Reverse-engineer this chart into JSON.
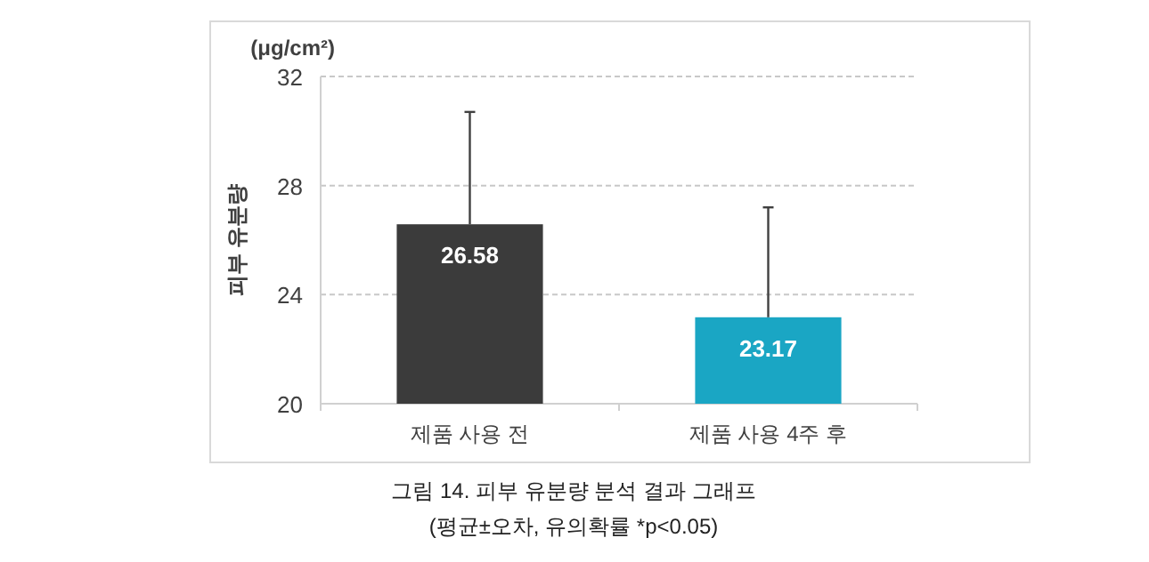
{
  "chart_data": {
    "type": "bar",
    "title": "그림 14. 피부 유분량 분석 결과 그래프",
    "subtitle": "(평균±오차, 유의확률 *p<0.05)",
    "ylabel": "피부 유분량",
    "annotations": [
      "(μg/cm²)"
    ],
    "categories": [
      "제품 사용 전",
      "제품 사용 4주 후"
    ],
    "values": [
      26.58,
      23.17
    ],
    "colors": [
      "#3b3b3b",
      "#1aa6c4"
    ],
    "errors": [
      [
        26.58,
        30.7
      ],
      [
        23.17,
        27.2
      ]
    ],
    "ylim": [
      20,
      32
    ],
    "yticks": [
      20,
      24,
      28,
      32
    ],
    "grid": "y",
    "data_labels": true
  }
}
